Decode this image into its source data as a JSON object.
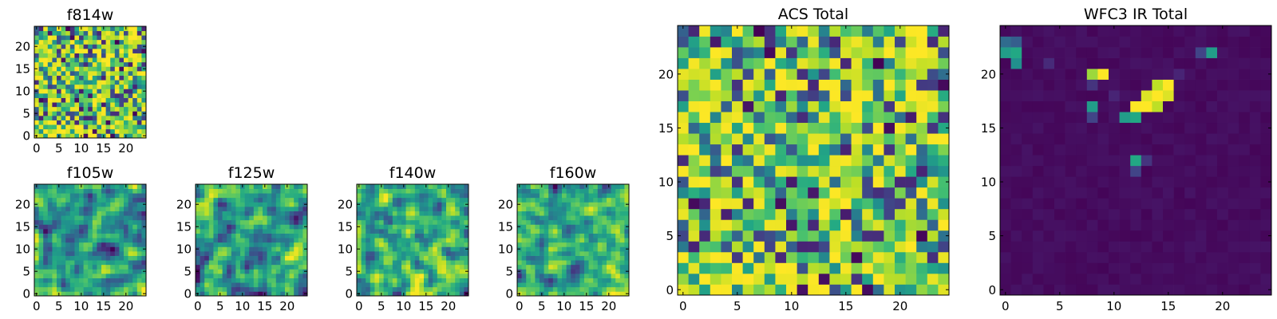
{
  "chart_data": [
    {
      "type": "heatmap",
      "title": "f814w",
      "xlabel": "",
      "ylabel": "",
      "xlim": [
        0,
        25
      ],
      "ylim": [
        0,
        25
      ],
      "xticks": [
        0,
        5,
        10,
        15,
        20
      ],
      "yticks": [
        0,
        5,
        10,
        15,
        20
      ],
      "xtick_labels": [
        "0",
        "5",
        "10",
        "15",
        "20"
      ],
      "ytick_labels": [
        "0",
        "5",
        "10",
        "15",
        "20"
      ],
      "grid_size": [
        25,
        25
      ],
      "colormap": "viridis",
      "pattern": "noise",
      "seed": 11
    },
    {
      "type": "heatmap",
      "title": "f105w",
      "xlabel": "",
      "ylabel": "",
      "xlim": [
        0,
        25
      ],
      "ylim": [
        0,
        25
      ],
      "xticks": [
        0,
        5,
        10,
        15,
        20
      ],
      "yticks": [
        0,
        5,
        10,
        15,
        20
      ],
      "xtick_labels": [
        "0",
        "5",
        "10",
        "15",
        "20"
      ],
      "ytick_labels": [
        "0",
        "5",
        "10",
        "15",
        "20"
      ],
      "grid_size": [
        25,
        25
      ],
      "colormap": "viridis",
      "pattern": "correlated-noise",
      "seed": 23
    },
    {
      "type": "heatmap",
      "title": "f125w",
      "xlabel": "",
      "ylabel": "",
      "xlim": [
        0,
        25
      ],
      "ylim": [
        0,
        25
      ],
      "xticks": [
        0,
        5,
        10,
        15,
        20
      ],
      "yticks": [
        0,
        5,
        10,
        15,
        20
      ],
      "xtick_labels": [
        "0",
        "5",
        "10",
        "15",
        "20"
      ],
      "ytick_labels": [
        "0",
        "5",
        "10",
        "15",
        "20"
      ],
      "grid_size": [
        25,
        25
      ],
      "colormap": "viridis",
      "pattern": "correlated-noise",
      "seed": 37
    },
    {
      "type": "heatmap",
      "title": "f140w",
      "xlabel": "",
      "ylabel": "",
      "xlim": [
        0,
        25
      ],
      "ylim": [
        0,
        25
      ],
      "xticks": [
        0,
        5,
        10,
        15,
        20
      ],
      "yticks": [
        0,
        5,
        10,
        15,
        20
      ],
      "xtick_labels": [
        "0",
        "5",
        "10",
        "15",
        "20"
      ],
      "ytick_labels": [
        "0",
        "5",
        "10",
        "15",
        "20"
      ],
      "grid_size": [
        25,
        25
      ],
      "colormap": "viridis",
      "pattern": "correlated-noise",
      "seed": 41
    },
    {
      "type": "heatmap",
      "title": "f160w",
      "xlabel": "",
      "ylabel": "",
      "xlim": [
        0,
        25
      ],
      "ylim": [
        0,
        25
      ],
      "xticks": [
        0,
        5,
        10,
        15,
        20
      ],
      "yticks": [
        0,
        5,
        10,
        15,
        20
      ],
      "xtick_labels": [
        "0",
        "5",
        "10",
        "15",
        "20"
      ],
      "ytick_labels": [
        "0",
        "5",
        "10",
        "15",
        "20"
      ],
      "grid_size": [
        25,
        25
      ],
      "colormap": "viridis",
      "pattern": "correlated-noise",
      "seed": 53
    },
    {
      "type": "heatmap",
      "title": "ACS Total",
      "xlabel": "",
      "ylabel": "",
      "xlim": [
        0,
        25
      ],
      "ylim": [
        0,
        25
      ],
      "xticks": [
        0,
        5,
        10,
        15,
        20
      ],
      "yticks": [
        0,
        5,
        10,
        15,
        20
      ],
      "xtick_labels": [
        "0",
        "5",
        "10",
        "15",
        "20"
      ],
      "ytick_labels": [
        "0",
        "5",
        "10",
        "15",
        "20"
      ],
      "grid_size": [
        25,
        25
      ],
      "colormap": "viridis",
      "pattern": "noise",
      "seed": 11
    },
    {
      "type": "heatmap",
      "title": "WFC3 IR Total",
      "xlabel": "",
      "ylabel": "",
      "xlim": [
        0,
        25
      ],
      "ylim": [
        0,
        25
      ],
      "xticks": [
        0,
        5,
        10,
        15,
        20
      ],
      "yticks": [
        0,
        5,
        10,
        15,
        20
      ],
      "xtick_labels": [
        "0",
        "5",
        "10",
        "15",
        "20"
      ],
      "ytick_labels": [
        "0",
        "5",
        "10",
        "15",
        "20"
      ],
      "grid_size": [
        25,
        25
      ],
      "colormap": "viridis",
      "pattern": "sparse-sources",
      "background_level": 0.04,
      "sources": [
        {
          "x": 0,
          "y": 23,
          "v": 0.35
        },
        {
          "x": 1,
          "y": 23,
          "v": 0.3
        },
        {
          "x": 0,
          "y": 22,
          "v": 0.55
        },
        {
          "x": 1,
          "y": 22,
          "v": 0.6
        },
        {
          "x": 1,
          "y": 21,
          "v": 0.5
        },
        {
          "x": 8,
          "y": 20,
          "v": 0.85
        },
        {
          "x": 9,
          "y": 20,
          "v": 1.0
        },
        {
          "x": 8,
          "y": 19,
          "v": 0.15
        },
        {
          "x": 14,
          "y": 19,
          "v": 0.9
        },
        {
          "x": 15,
          "y": 19,
          "v": 1.0
        },
        {
          "x": 13,
          "y": 18,
          "v": 0.95
        },
        {
          "x": 14,
          "y": 18,
          "v": 1.0
        },
        {
          "x": 15,
          "y": 18,
          "v": 0.95
        },
        {
          "x": 12,
          "y": 17,
          "v": 1.0
        },
        {
          "x": 13,
          "y": 17,
          "v": 1.0
        },
        {
          "x": 14,
          "y": 17,
          "v": 0.9
        },
        {
          "x": 11,
          "y": 16,
          "v": 0.55
        },
        {
          "x": 12,
          "y": 16,
          "v": 0.6
        },
        {
          "x": 8,
          "y": 17,
          "v": 0.55
        },
        {
          "x": 8,
          "y": 16,
          "v": 0.2
        },
        {
          "x": 12,
          "y": 12,
          "v": 0.6
        },
        {
          "x": 12,
          "y": 11,
          "v": 0.2
        },
        {
          "x": 13,
          "y": 12,
          "v": 0.15
        },
        {
          "x": 19,
          "y": 22,
          "v": 0.55
        },
        {
          "x": 18,
          "y": 22,
          "v": 0.2
        },
        {
          "x": 4,
          "y": 21,
          "v": 0.12
        },
        {
          "x": 16,
          "y": 20,
          "v": 0.1
        },
        {
          "x": 10,
          "y": 18,
          "v": 0.1
        }
      ]
    }
  ]
}
